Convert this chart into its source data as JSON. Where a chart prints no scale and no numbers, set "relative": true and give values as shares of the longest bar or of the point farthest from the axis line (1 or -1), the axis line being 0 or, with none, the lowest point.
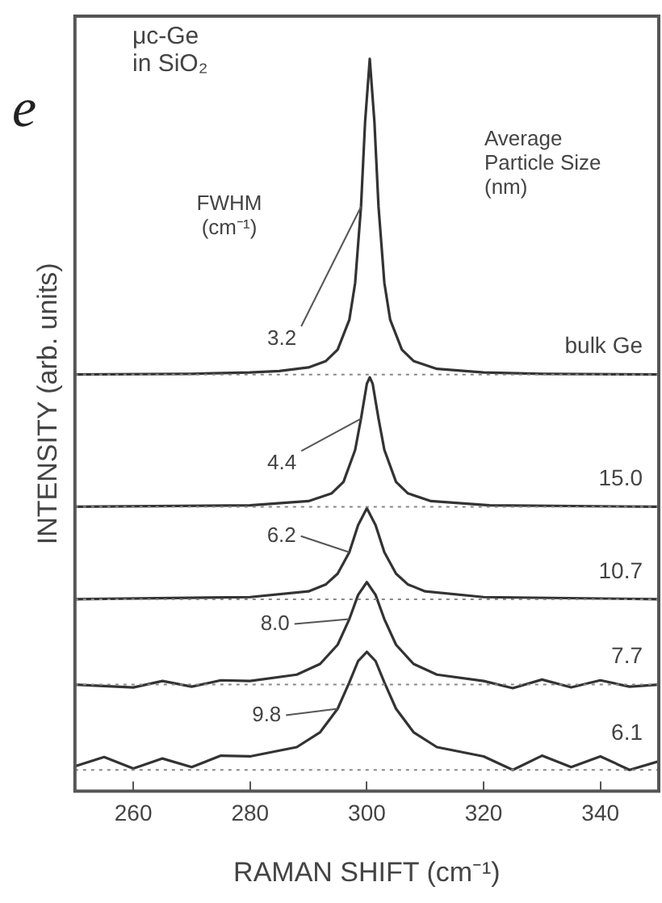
{
  "chart_data": {
    "type": "line",
    "relative": true,
    "xlabel": "RAMAN SHIFT (cm⁻¹)",
    "ylabel": "INTENSITY (arb. units)",
    "xlim": [
      250,
      350
    ],
    "xticks": [
      260,
      280,
      300,
      320,
      340
    ],
    "grid": false,
    "legend": false,
    "marker": "none",
    "line_style": "solid",
    "series": [
      {
        "name": "bulk Ge",
        "color": "#333333",
        "x": [
          250,
          270,
          280,
          285,
          290,
          293,
          295,
          297,
          298,
          299,
          299.7,
          300.5,
          301.3,
          302,
          303,
          304,
          306,
          308,
          312,
          320,
          330,
          350
        ],
        "values": [
          0.556,
          0.557,
          0.559,
          0.561,
          0.566,
          0.575,
          0.591,
          0.633,
          0.685,
          0.792,
          0.911,
          1.0,
          0.911,
          0.792,
          0.685,
          0.633,
          0.591,
          0.575,
          0.564,
          0.559,
          0.557,
          0.556
        ]
      },
      {
        "name": "15.0",
        "color": "#333333",
        "x": [
          250,
          280,
          290,
          294,
          296,
          298,
          299,
          300,
          300.5,
          301,
          302,
          303,
          305,
          307,
          311,
          321,
          350
        ],
        "values": [
          0.37,
          0.372,
          0.378,
          0.389,
          0.405,
          0.45,
          0.494,
          0.543,
          0.552,
          0.543,
          0.494,
          0.45,
          0.405,
          0.389,
          0.378,
          0.372,
          0.37
        ]
      },
      {
        "name": "10.7",
        "color": "#333333",
        "x": [
          250,
          280,
          290,
          293,
          295,
          297,
          298.5,
          300,
          301.5,
          303,
          305,
          307,
          310,
          320,
          350
        ],
        "values": [
          0.24,
          0.243,
          0.251,
          0.261,
          0.276,
          0.306,
          0.344,
          0.368,
          0.344,
          0.306,
          0.276,
          0.261,
          0.251,
          0.243,
          0.24
        ]
      },
      {
        "name": "7.7",
        "color": "#333333",
        "x": [
          250,
          260,
          265,
          270,
          275,
          280,
          288,
          292,
          295,
          297,
          298.5,
          300,
          301.5,
          303,
          305,
          308,
          312,
          320,
          325,
          330,
          335,
          340,
          345,
          350
        ],
        "values": [
          0.12,
          0.116,
          0.125,
          0.117,
          0.126,
          0.125,
          0.134,
          0.149,
          0.176,
          0.212,
          0.246,
          0.264,
          0.246,
          0.212,
          0.176,
          0.149,
          0.134,
          0.125,
          0.115,
          0.127,
          0.116,
          0.126,
          0.117,
          0.12
        ]
      },
      {
        "name": "6.1",
        "color": "#333333",
        "x": [
          250,
          255,
          260,
          265,
          270,
          275,
          280,
          288,
          292,
          295,
          297,
          298.5,
          300,
          301.5,
          303,
          305,
          308,
          312,
          320,
          325,
          330,
          335,
          340,
          345,
          350
        ],
        "values": [
          0.005,
          0.018,
          0.002,
          0.016,
          0.004,
          0.02,
          0.019,
          0.032,
          0.053,
          0.086,
          0.123,
          0.153,
          0.166,
          0.153,
          0.123,
          0.086,
          0.053,
          0.032,
          0.019,
          0.0,
          0.02,
          0.004,
          0.019,
          0.0,
          0.012
        ]
      }
    ],
    "ref_lines": [
      {
        "axis": "y",
        "value": 0.556,
        "line_style": "dotted"
      },
      {
        "axis": "y",
        "value": 0.37,
        "line_style": "dotted"
      },
      {
        "axis": "y",
        "value": 0.24,
        "line_style": "dotted"
      },
      {
        "axis": "y",
        "value": 0.12,
        "line_style": "dotted"
      },
      {
        "axis": "y",
        "value": 0.0,
        "line_style": "dotted"
      }
    ],
    "annotations": [
      "μc-Ge in SiO₂",
      "FWHM (cm⁻¹)",
      "Average Particle Size (nm)",
      "e",
      {
        "text": "3.2",
        "x": 299,
        "y": 0.792
      },
      {
        "text": "4.4",
        "x": 299,
        "y": 0.494
      },
      {
        "text": "6.2",
        "x": 297,
        "y": 0.306
      },
      {
        "text": "8.0",
        "x": 297,
        "y": 0.212
      },
      {
        "text": "9.8",
        "x": 295,
        "y": 0.086
      }
    ]
  }
}
